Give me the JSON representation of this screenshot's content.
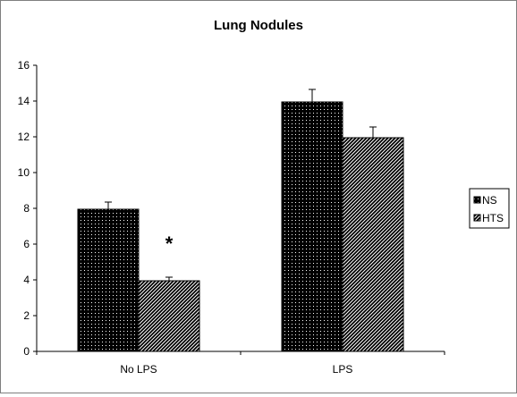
{
  "chart_data": {
    "type": "bar",
    "title": "Lung Nodules",
    "xlabel": "",
    "ylabel": "",
    "ylim": [
      0,
      16
    ],
    "yticks": [
      0,
      2,
      4,
      6,
      8,
      10,
      12,
      14,
      16
    ],
    "categories": [
      "No LPS",
      "LPS"
    ],
    "series": [
      {
        "name": "NS",
        "values": [
          7.95,
          13.95
        ],
        "errors": [
          0.4,
          0.7
        ]
      },
      {
        "name": "HTS",
        "values": [
          3.95,
          11.95
        ],
        "errors": [
          0.2,
          0.6
        ]
      }
    ],
    "annotations": [
      {
        "text": "*",
        "category": "No LPS",
        "series": "HTS"
      }
    ],
    "legend": "right",
    "grid": false
  }
}
